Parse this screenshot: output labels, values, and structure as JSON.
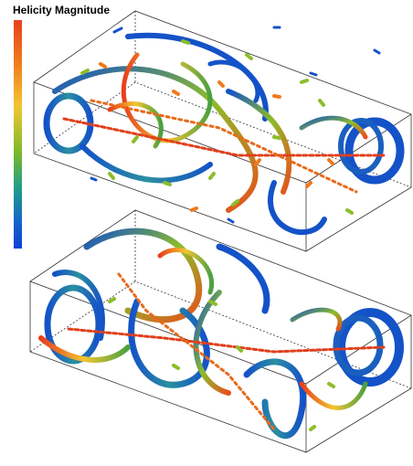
{
  "colorbar": {
    "title": "Helicity Magnitude"
  }
}
